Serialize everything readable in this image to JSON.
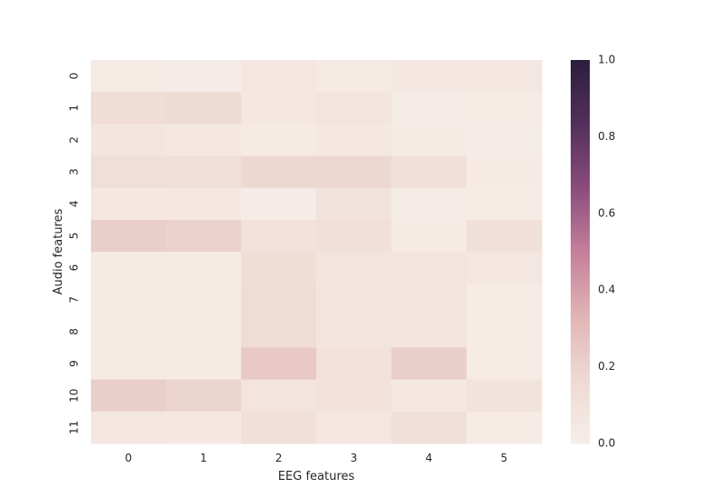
{
  "chart_data": {
    "type": "heatmap",
    "xlabel": "EEG features",
    "ylabel": "Audio features",
    "x_categories": [
      "0",
      "1",
      "2",
      "3",
      "4",
      "5"
    ],
    "y_categories": [
      "0",
      "1",
      "2",
      "3",
      "4",
      "5",
      "6",
      "7",
      "8",
      "9",
      "10",
      "11"
    ],
    "values": [
      [
        0.02,
        0.01,
        0.05,
        0.03,
        0.05,
        0.05
      ],
      [
        0.14,
        0.16,
        0.04,
        0.08,
        0.01,
        0.02
      ],
      [
        0.07,
        0.04,
        0.03,
        0.04,
        0.03,
        0.01
      ],
      [
        0.13,
        0.12,
        0.18,
        0.18,
        0.12,
        0.03
      ],
      [
        0.04,
        0.04,
        0.01,
        0.09,
        0.01,
        0.02
      ],
      [
        0.22,
        0.2,
        0.1,
        0.11,
        0.03,
        0.11
      ],
      [
        0.03,
        0.03,
        0.14,
        0.08,
        0.08,
        0.05
      ],
      [
        0.03,
        0.03,
        0.15,
        0.08,
        0.08,
        0.02
      ],
      [
        0.03,
        0.03,
        0.15,
        0.08,
        0.08,
        0.02
      ],
      [
        0.03,
        0.03,
        0.24,
        0.1,
        0.22,
        0.02
      ],
      [
        0.22,
        0.19,
        0.08,
        0.1,
        0.04,
        0.09
      ],
      [
        0.05,
        0.04,
        0.12,
        0.05,
        0.12,
        0.02
      ]
    ],
    "colorbar": {
      "min": 0.0,
      "max": 1.0,
      "ticks": [
        "0.0",
        "0.2",
        "0.4",
        "0.6",
        "0.8",
        "1.0"
      ]
    },
    "colormap": [
      "#f7ede8",
      "#eedad3",
      "#e1b4b4",
      "#c47f9a",
      "#8a4c7c",
      "#53305c",
      "#2d1e3e"
    ]
  }
}
